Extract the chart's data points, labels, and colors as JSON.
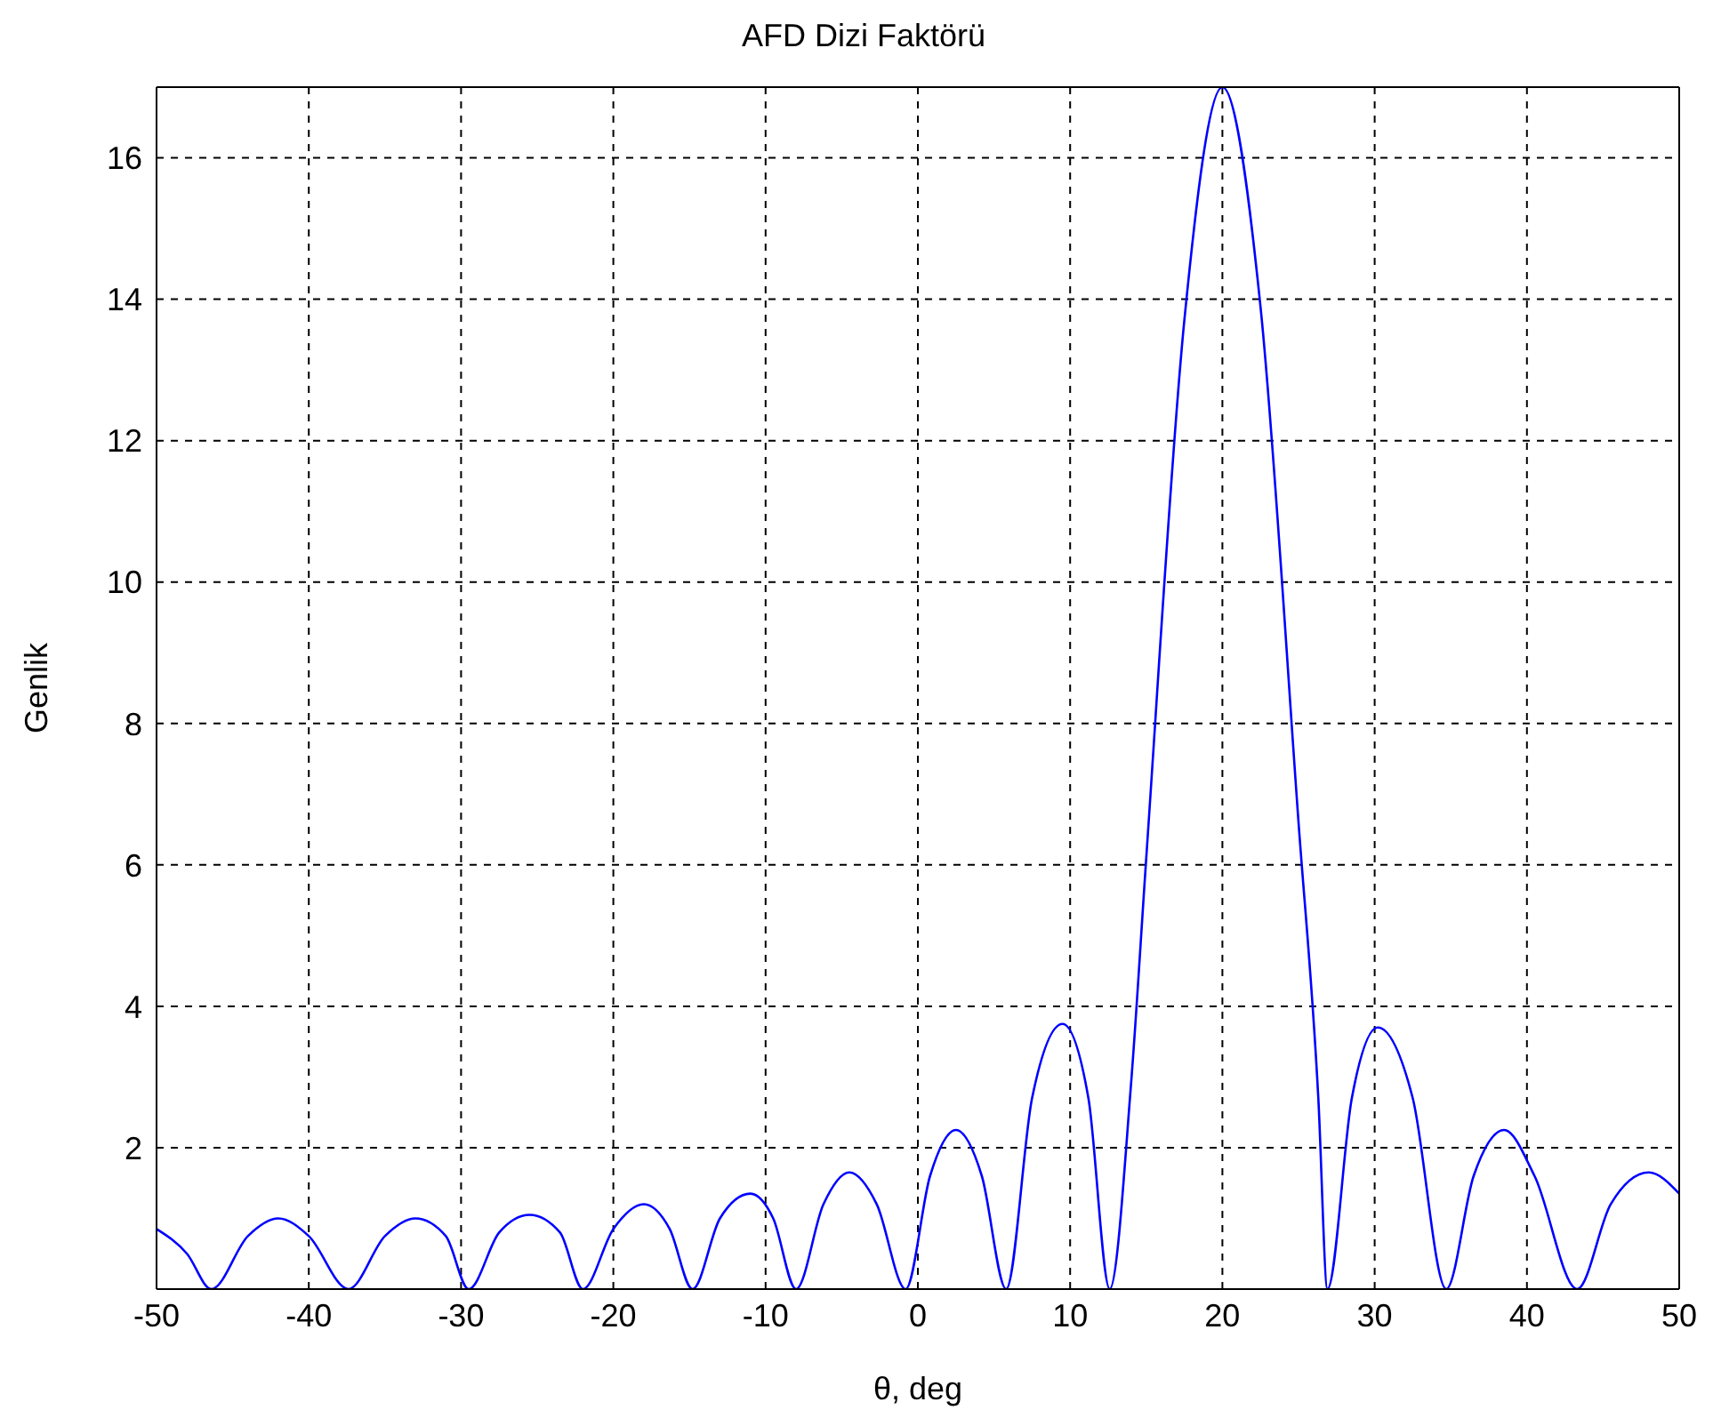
{
  "chart_data": {
    "type": "line",
    "title": "AFD Dizi Faktörü",
    "xlabel": "θ, deg",
    "ylabel": "Genlik",
    "xlim": [
      -50,
      50
    ],
    "xticks": [
      -50,
      -40,
      -30,
      -20,
      -10,
      0,
      10,
      20,
      30,
      40,
      50
    ],
    "ylim": [
      0,
      17
    ],
    "yticks": [
      2,
      4,
      6,
      8,
      10,
      12,
      14,
      16
    ],
    "grid": true,
    "marker": "none",
    "line_style": "solid",
    "series": [
      {
        "color": "#0000ff",
        "x": [
          -50,
          -48,
          -46.4,
          -44,
          -42,
          -40,
          -37.4,
          -35,
          -33,
          -31,
          -29.5,
          -27.5,
          -25.5,
          -23.5,
          -22,
          -20,
          -18,
          -16.3,
          -14.8,
          -13,
          -11,
          -9.5,
          -8,
          -6.2,
          -4.5,
          -2.7,
          -0.8,
          0.8,
          2.5,
          4.2,
          5.8,
          7.5,
          9.5,
          11.2,
          12.6,
          14,
          15,
          17.5,
          20,
          22.5,
          25,
          26.3,
          26.9,
          28.5,
          30.2,
          32.5,
          34.7,
          36.5,
          38.5,
          40.5,
          43.3,
          45.5,
          48,
          50
        ],
        "values": [
          0.85,
          0.5,
          0,
          0.75,
          1.0,
          0.75,
          0,
          0.75,
          1.0,
          0.75,
          0,
          0.8,
          1.05,
          0.8,
          0,
          0.85,
          1.2,
          0.85,
          0,
          1.0,
          1.35,
          1.0,
          0,
          1.2,
          1.65,
          1.2,
          0,
          1.6,
          2.25,
          1.6,
          0,
          2.7,
          3.75,
          2.7,
          0,
          2.9,
          6.1,
          13.7,
          17,
          13.9,
          6.6,
          2.7,
          0,
          2.7,
          3.7,
          2.7,
          0,
          1.6,
          2.25,
          1.6,
          0,
          1.2,
          1.65,
          1.35
        ]
      }
    ]
  }
}
